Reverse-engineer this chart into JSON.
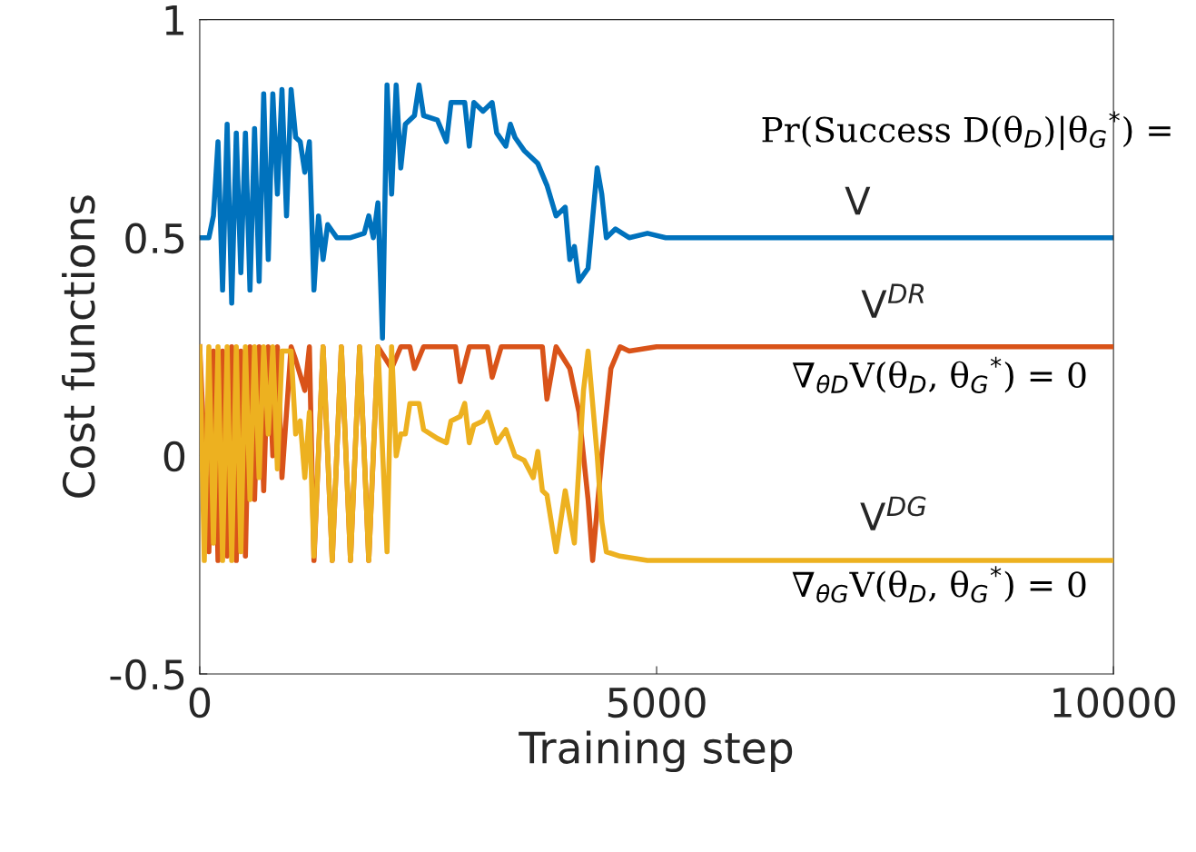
{
  "chart_data": {
    "type": "line",
    "xlabel": "Training step",
    "ylabel": "Cost functions",
    "xlim": [
      0,
      10000
    ],
    "xticks": [
      0,
      5000,
      10000
    ],
    "ylim": [
      -0.5,
      1
    ],
    "yticks": [
      {
        "value": -0.5,
        "label": "-0.5"
      },
      0,
      0.5,
      1
    ],
    "grid": false,
    "legend": false,
    "marker": "none",
    "line_style": "solid",
    "series": [
      {
        "name": "V",
        "color": "#0072bd",
        "x": [
          0,
          100,
          150,
          200,
          250,
          300,
          350,
          400,
          450,
          500,
          550,
          600,
          650,
          700,
          750,
          800,
          850,
          900,
          950,
          1000,
          1050,
          1100,
          1150,
          1200,
          1250,
          1300,
          1350,
          1400,
          1500,
          1650,
          1800,
          1850,
          1900,
          1950,
          2000,
          2050,
          2100,
          2150,
          2200,
          2250,
          2350,
          2400,
          2450,
          2600,
          2700,
          2750,
          2900,
          2950,
          3000,
          3100,
          3200,
          3250,
          3350,
          3400,
          3450,
          3550,
          3700,
          3800,
          3900,
          4000,
          4050,
          4100,
          4150,
          4250,
          4350,
          4400,
          4450,
          4550,
          4700,
          4900,
          5100,
          6000,
          10000
        ],
        "values": [
          0.5,
          0.5,
          0.55,
          0.72,
          0.38,
          0.76,
          0.35,
          0.74,
          0.42,
          0.74,
          0.38,
          0.75,
          0.4,
          0.83,
          0.45,
          0.83,
          0.6,
          0.84,
          0.55,
          0.84,
          0.73,
          0.72,
          0.65,
          0.72,
          0.38,
          0.55,
          0.45,
          0.53,
          0.5,
          0.5,
          0.51,
          0.55,
          0.5,
          0.58,
          0.27,
          0.85,
          0.6,
          0.85,
          0.66,
          0.76,
          0.78,
          0.85,
          0.78,
          0.77,
          0.72,
          0.81,
          0.81,
          0.71,
          0.81,
          0.79,
          0.81,
          0.74,
          0.71,
          0.76,
          0.73,
          0.7,
          0.67,
          0.62,
          0.55,
          0.57,
          0.45,
          0.48,
          0.4,
          0.43,
          0.66,
          0.6,
          0.5,
          0.52,
          0.5,
          0.51,
          0.5,
          0.5,
          0.5
        ]
      },
      {
        "name": "V$^{DR}$",
        "color": "#d95319",
        "x": [
          0,
          100,
          150,
          200,
          250,
          300,
          350,
          400,
          450,
          500,
          550,
          600,
          650,
          700,
          750,
          800,
          850,
          900,
          1000,
          1050,
          1150,
          1200,
          1250,
          1350,
          1450,
          1550,
          1650,
          1750,
          1850,
          1950,
          2100,
          2200,
          2300,
          2350,
          2450,
          2800,
          2850,
          2950,
          3150,
          3200,
          3300,
          3750,
          3800,
          3900,
          4050,
          4150,
          4250,
          4300,
          4400,
          4500,
          4600,
          4700,
          5000,
          10000
        ],
        "values": [
          0.25,
          -0.22,
          0.24,
          -0.24,
          0.24,
          -0.23,
          0.25,
          -0.24,
          0.24,
          -0.23,
          0.25,
          -0.1,
          0.25,
          -0.08,
          0.25,
          0,
          0.25,
          -0.05,
          0.25,
          0.22,
          0.15,
          0.25,
          -0.24,
          0.25,
          -0.24,
          0.25,
          -0.24,
          0.25,
          -0.24,
          0.25,
          0.2,
          0.25,
          0.25,
          0.2,
          0.25,
          0.25,
          0.17,
          0.25,
          0.25,
          0.18,
          0.25,
          0.25,
          0.13,
          0.25,
          0.2,
          0.1,
          -0.1,
          -0.24,
          0,
          0.2,
          0.25,
          0.24,
          0.25,
          0.25
        ]
      },
      {
        "name": "V$^{DG}$",
        "color": "#edb120",
        "x": [
          0,
          50,
          100,
          150,
          200,
          250,
          300,
          350,
          400,
          450,
          500,
          550,
          600,
          650,
          700,
          750,
          800,
          850,
          900,
          1000,
          1050,
          1100,
          1150,
          1200,
          1250,
          1350,
          1450,
          1550,
          1650,
          1750,
          1850,
          1950,
          2050,
          2100,
          2150,
          2200,
          2250,
          2300,
          2400,
          2450,
          2600,
          2700,
          2750,
          2850,
          2900,
          2950,
          3000,
          3100,
          3150,
          3250,
          3350,
          3450,
          3550,
          3650,
          3700,
          3750,
          3800,
          3900,
          4000,
          4100,
          4200,
          4250,
          4350,
          4400,
          4450,
          4600,
          4900,
          10000
        ],
        "values": [
          0.25,
          -0.24,
          0.25,
          -0.2,
          0.25,
          -0.24,
          0.25,
          -0.24,
          0.25,
          -0.22,
          0.25,
          -0.1,
          0.25,
          -0.05,
          0.25,
          0.05,
          0.25,
          -0.03,
          0.24,
          0.24,
          0.05,
          0.08,
          -0.05,
          0.1,
          -0.23,
          0.25,
          -0.24,
          0.25,
          -0.24,
          0.25,
          -0.24,
          0.25,
          -0.22,
          0.25,
          0,
          0.05,
          0.05,
          0.12,
          0.12,
          0.06,
          0.04,
          0.03,
          0.08,
          0.09,
          0.12,
          0.03,
          0.07,
          0.08,
          0.1,
          0.03,
          0.06,
          0,
          -0.01,
          -0.05,
          0.01,
          -0.08,
          -0.09,
          -0.22,
          -0.08,
          -0.2,
          0.15,
          0.24,
          0,
          -0.15,
          -0.22,
          -0.23,
          -0.24,
          -0.24
        ]
      }
    ],
    "annotations": [
      "Pr(Success D(θ$_{D}$)|θ$_{G}$$^{*}$) =",
      "∇$_{θD}$V(θ$_{D}$, θ$_{G}$$^{*}$) = 0",
      "∇$_{θG}$V(θ$_{D}$, θ$_{G}$$^{*}$) = 0"
    ]
  }
}
